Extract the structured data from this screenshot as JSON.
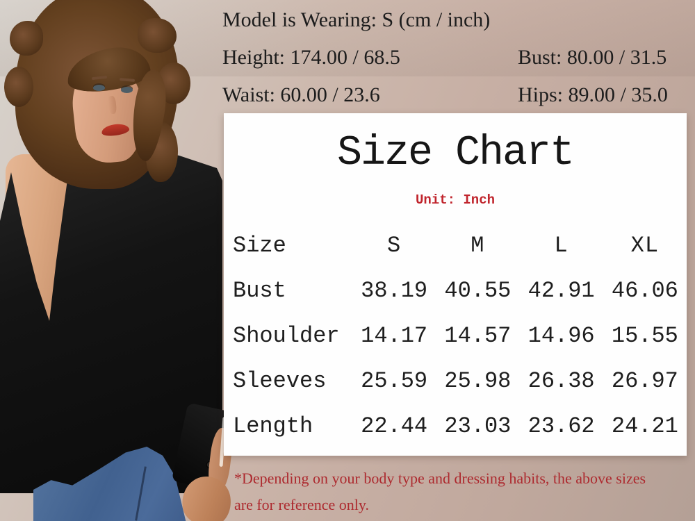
{
  "header": {
    "line1": "Model is Wearing: S (cm / inch)",
    "height": "Height: 174.00 / 68.5",
    "bust": "Bust: 80.00 / 31.5",
    "waist": "Waist: 60.00 / 23.6",
    "hips": "Hips: 89.00 / 35.0"
  },
  "size_chart": {
    "title": "Size Chart",
    "unit_label": "Unit: Inch",
    "header_row": [
      "Size",
      "S",
      "M",
      "L",
      "XL"
    ],
    "rows": [
      {
        "label": "Bust",
        "values": [
          "38.19",
          "40.55",
          "42.91",
          "46.06"
        ]
      },
      {
        "label": "Shoulder",
        "values": [
          "14.17",
          "14.57",
          "14.96",
          "15.55"
        ]
      },
      {
        "label": "Sleeves",
        "values": [
          "25.59",
          "25.98",
          "26.38",
          "26.97"
        ]
      },
      {
        "label": "Length",
        "values": [
          "22.44",
          "23.03",
          "23.62",
          "24.21"
        ]
      }
    ]
  },
  "footnote": {
    "line1": "*Depending on your body type and dressing habits, the above sizes",
    "line2": "are for reference only."
  },
  "model_photo": {
    "alt": "Model with curly brown hair and red lipstick seen from the back, wearing a black long-sleeve top with a deep V open back twist detail and blue jeans"
  },
  "colors": {
    "wall_left": "#d8d3cd",
    "wall_right": "#b4a096",
    "panel_background": "#fefefe",
    "text_primary": "#1c1c1c",
    "unit_red": "#c0242c",
    "footnote_red": "#ad2a2f",
    "top_black": "#141414",
    "hair_brown": "#63401f",
    "skin_tone": "#d9a57f",
    "denim_blue": "#41618f",
    "lips_red": "#b13226"
  },
  "chart_data": {
    "type": "table",
    "title": "Size Chart",
    "unit": "Inch",
    "columns": [
      "Size",
      "S",
      "M",
      "L",
      "XL"
    ],
    "rows": [
      [
        "Bust",
        38.19,
        40.55,
        42.91,
        46.06
      ],
      [
        "Shoulder",
        14.17,
        14.57,
        14.96,
        15.55
      ],
      [
        "Sleeves",
        25.59,
        25.98,
        26.38,
        26.97
      ],
      [
        "Length",
        22.44,
        23.03,
        23.62,
        24.21
      ]
    ],
    "model_measurements": {
      "size_worn": "S",
      "format": "cm / inch",
      "height": "174.00 / 68.5",
      "bust": "80.00 / 31.5",
      "waist": "60.00 / 23.6",
      "hips": "89.00 / 35.0"
    },
    "footnote": "*Depending on your body type and dressing habits, the above sizes are for reference only."
  }
}
